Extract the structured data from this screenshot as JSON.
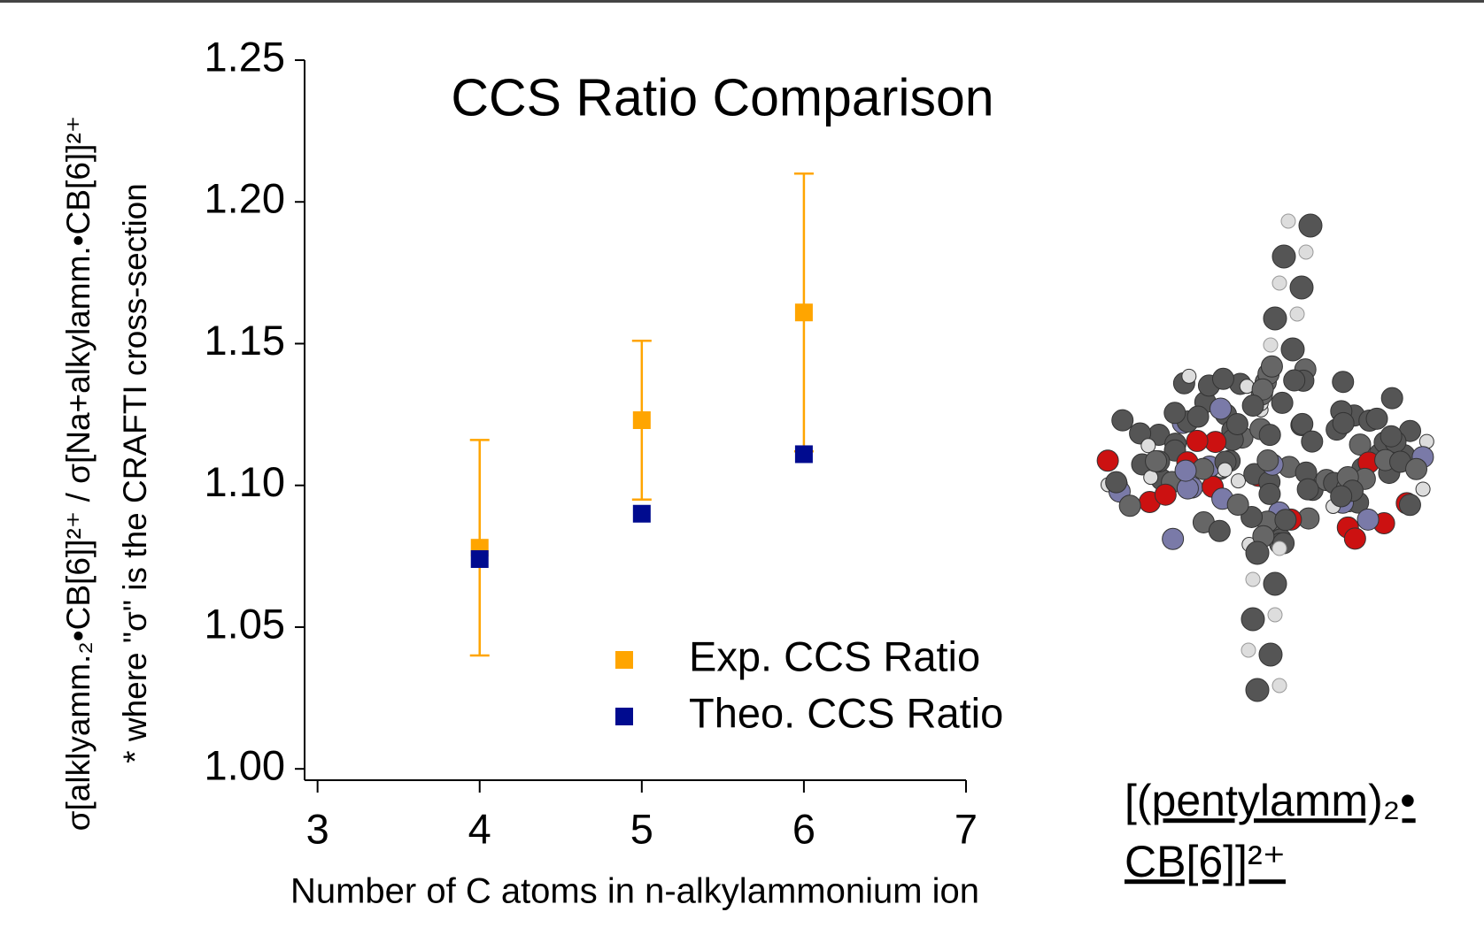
{
  "chart_data": {
    "type": "scatter",
    "title": "CCS Ratio Comparison",
    "xlabel": "Number of C atoms in n-alkylammonium ion",
    "ylabel": [
      "σ[alklyamm.₂•CB[6]]²⁺ / σ[Na+alkylamm.•CB[6]]²⁺",
      "* where \"σ\" is the CRAFTI cross-section"
    ],
    "x": [
      4,
      5,
      6
    ],
    "series": [
      {
        "name": "Exp. CCS Ratio",
        "color": "#ffa500",
        "values": [
          1.078,
          1.123,
          1.161
        ],
        "errors": [
          0.038,
          0.028,
          0.049
        ]
      },
      {
        "name": "Theo. CCS Ratio",
        "color": "#000b8f",
        "values": [
          1.074,
          1.09,
          1.111
        ]
      }
    ],
    "xlim": [
      2.92,
      7
    ],
    "xticks": [
      3,
      4,
      5,
      6,
      7
    ],
    "ylim": [
      0.996,
      1.25
    ],
    "yticks": [
      {
        "value": 1,
        "label": "1.00"
      },
      1.05,
      {
        "value": 1.1,
        "label": "1.10"
      },
      1.15,
      {
        "value": 1.2,
        "label": "1.20"
      },
      1.25
    ],
    "legend": "lower right",
    "caption": [
      "[(pentylamm)₂•",
      "CB[6]]²⁺"
    ]
  }
}
